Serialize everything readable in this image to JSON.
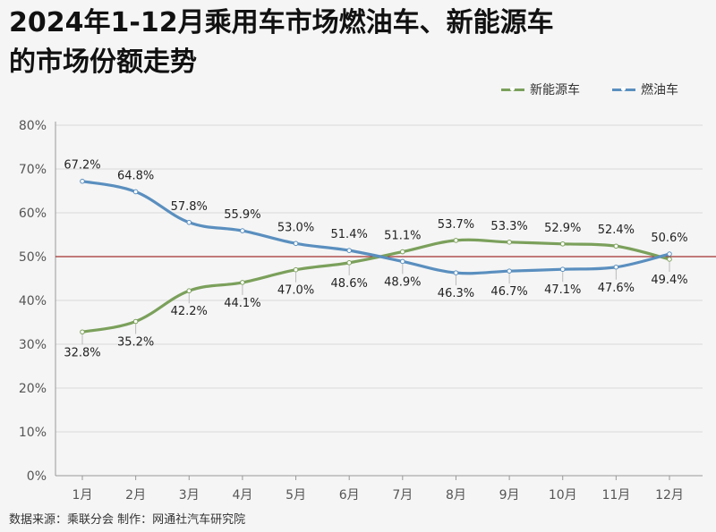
{
  "title": {
    "line1": "2024年1-12月乘用车市场燃油车、新能源车",
    "line2": "的市场份额走势"
  },
  "legend": {
    "nev_label": "新能源车",
    "fuel_label": "燃油车"
  },
  "source": "数据来源：乘联分会  制作：网通社汽车研究院",
  "colors": {
    "nev": "#7ba05b",
    "fuel": "#5a8fbf",
    "reference_line": "#a33030",
    "grid": "#d9d9d9"
  },
  "chart_data": {
    "type": "line",
    "categories": [
      "1月",
      "2月",
      "3月",
      "4月",
      "5月",
      "6月",
      "7月",
      "8月",
      "9月",
      "10月",
      "11月",
      "12月"
    ],
    "series": [
      {
        "name": "新能源车",
        "values": [
          32.8,
          35.2,
          42.2,
          44.1,
          47.0,
          48.6,
          51.1,
          53.7,
          53.3,
          52.9,
          52.4,
          49.4
        ],
        "labels": [
          "32.8%",
          "35.2%",
          "42.2%",
          "44.1%",
          "47.0%",
          "48.6%",
          "51.1%",
          "53.7%",
          "53.3%",
          "52.9%",
          "52.4%",
          "49.4%"
        ]
      },
      {
        "name": "燃油车",
        "values": [
          67.2,
          64.8,
          57.8,
          55.9,
          53.0,
          51.4,
          48.9,
          46.3,
          46.7,
          47.1,
          47.6,
          50.6
        ],
        "labels": [
          "67.2%",
          "64.8%",
          "57.8%",
          "55.9%",
          "53.0%",
          "51.4%",
          "48.9%",
          "46.3%",
          "46.7%",
          "47.1%",
          "47.6%",
          "50.6%"
        ]
      }
    ],
    "ylim": [
      0,
      80
    ],
    "yticks": [
      "0%",
      "10%",
      "20%",
      "30%",
      "40%",
      "50%",
      "60%",
      "70%",
      "80%"
    ],
    "reference_line": 50,
    "grid": true,
    "legend_position": "top-right"
  }
}
